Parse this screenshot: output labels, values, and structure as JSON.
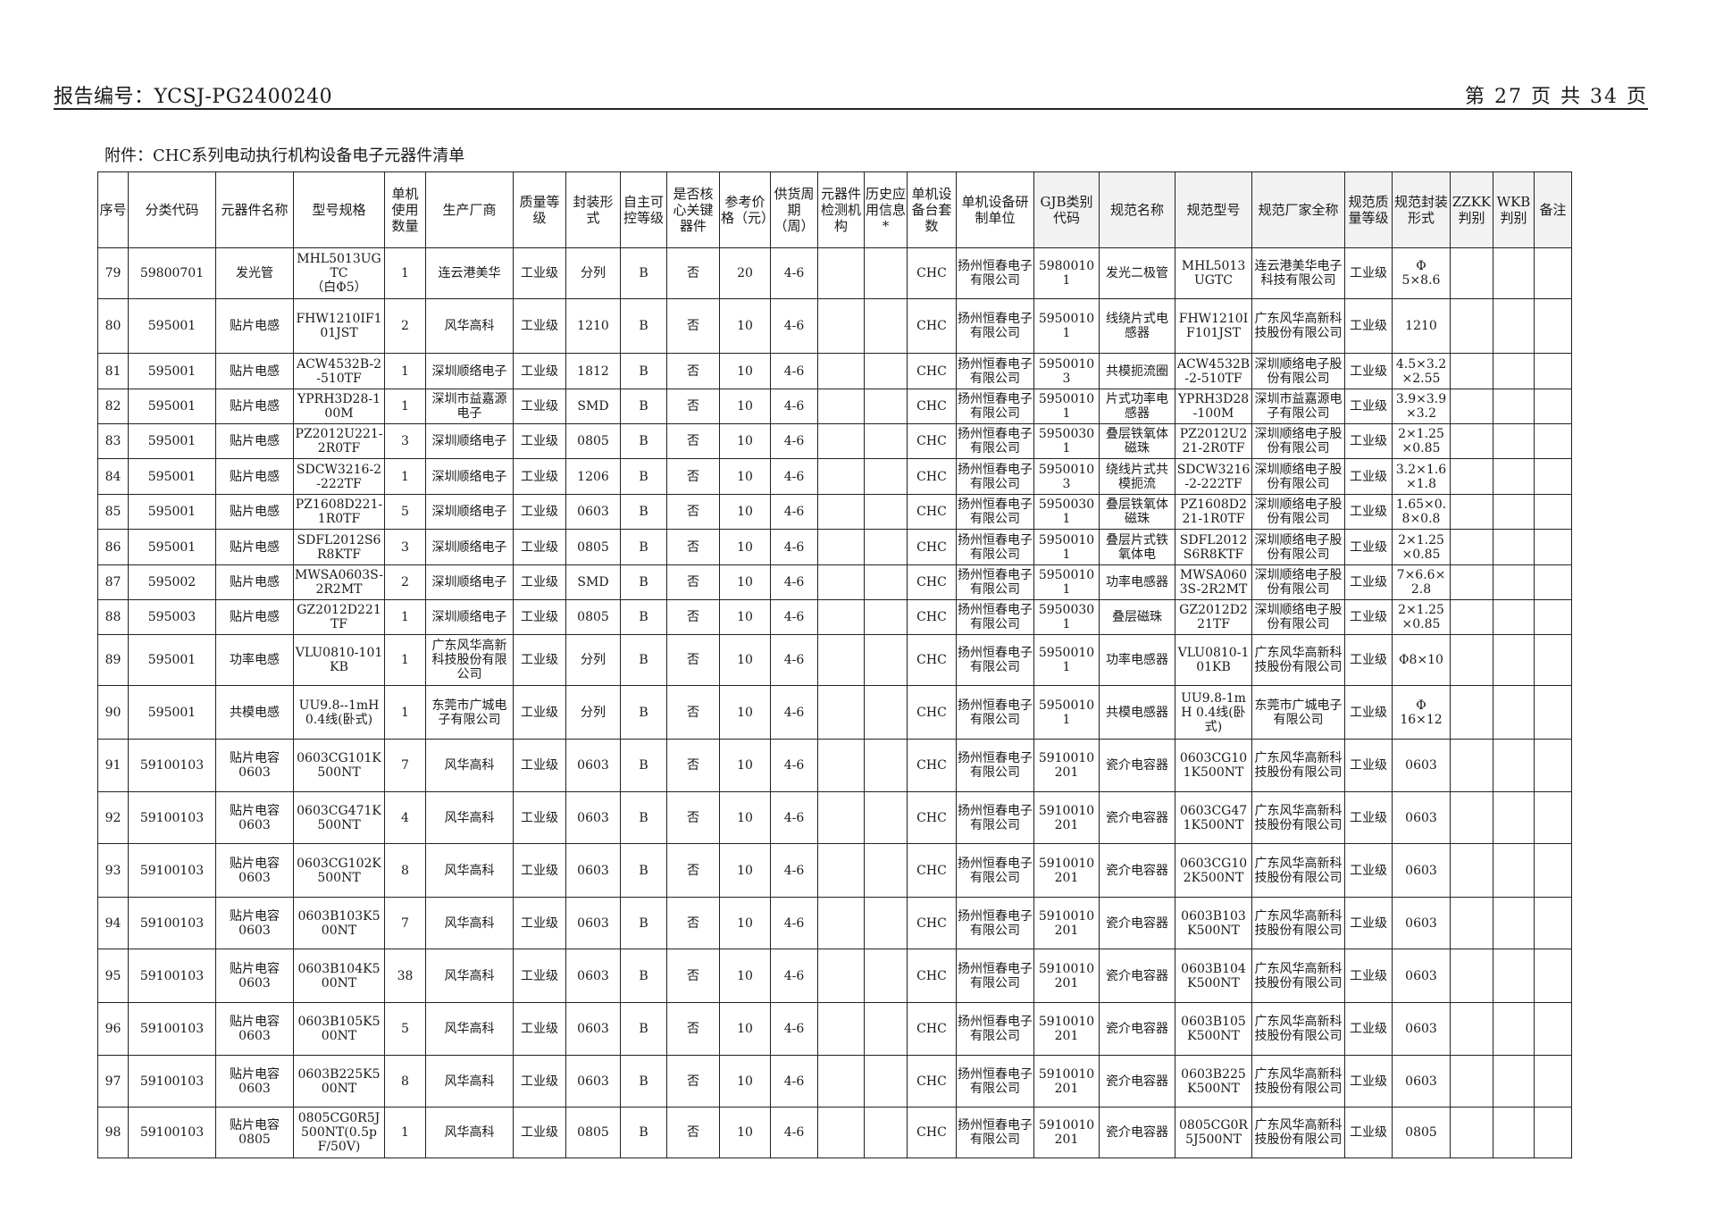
{
  "header": {
    "report_no": "报告编号：YCSJ-PG2400240",
    "page": "第 27 页 共 34 页"
  },
  "title": "附件：CHC系列电动执行机构设备电子元器件清单",
  "columns": [
    "序号",
    "分类代码",
    "元器件名称",
    "型号规格",
    "单机使用数量",
    "生产厂商",
    "质量等级",
    "封装形式",
    "自主可控等级",
    "是否核心关键器件",
    "参考价格（元）",
    "供货周期（周）",
    "元器件检测机构",
    "历史应用信息*",
    "单机设备台套数",
    "单机设备研制单位",
    "GJB类别代码",
    "规范名称",
    "规范型号",
    "规范厂家全称",
    "规范质量等级",
    "规范封装形式",
    "ZZKK判别",
    "WKB判别",
    "备注"
  ],
  "rows": [
    [
      "79",
      "59800701",
      "发光管",
      "MHL5013UGTC\n（白Φ5）",
      "1",
      "连云港美华",
      "工业级",
      "分列",
      "B",
      "否",
      "20",
      "4-6",
      "",
      "",
      "CHC",
      "扬州恒春电子有限公司",
      "59800101",
      "发光二极管",
      "MHL5013UGTC",
      "连云港美华电子科技有限公司",
      "工业级",
      "Φ\n5×8.6",
      "",
      "",
      ""
    ],
    [
      "80",
      "595001",
      "贴片电感",
      "FHW1210IF101JST",
      "2",
      "风华高科",
      "工业级",
      "1210",
      "B",
      "否",
      "10",
      "4-6",
      "",
      "",
      "CHC",
      "扬州恒春电子有限公司",
      "59500101",
      "线绕片式电感器",
      "FHW1210IF101JST",
      "广东风华高新科技股份有限公司",
      "工业级",
      "1210",
      "",
      "",
      ""
    ],
    [
      "81",
      "595001",
      "贴片电感",
      "ACW4532B-2-510TF",
      "1",
      "深圳顺络电子",
      "工业级",
      "1812",
      "B",
      "否",
      "10",
      "4-6",
      "",
      "",
      "CHC",
      "扬州恒春电子有限公司",
      "59500103",
      "共模扼流圈",
      "ACW4532B-2-510TF",
      "深圳顺络电子股份有限公司",
      "工业级",
      "4.5×3.2×2.55",
      "",
      "",
      ""
    ],
    [
      "82",
      "595001",
      "贴片电感",
      "YPRH3D28-100M",
      "1",
      "深圳市益嘉源电子",
      "工业级",
      "SMD",
      "B",
      "否",
      "10",
      "4-6",
      "",
      "",
      "CHC",
      "扬州恒春电子有限公司",
      "59500101",
      "片式功率电感器",
      "YPRH3D28-100M",
      "深圳市益嘉源电子有限公司",
      "工业级",
      "3.9×3.9×3.2",
      "",
      "",
      ""
    ],
    [
      "83",
      "595001",
      "贴片电感",
      "PZ2012U221-2R0TF",
      "3",
      "深圳顺络电子",
      "工业级",
      "0805",
      "B",
      "否",
      "10",
      "4-6",
      "",
      "",
      "CHC",
      "扬州恒春电子有限公司",
      "59500301",
      "叠层铁氧体磁珠",
      "PZ2012U221-2R0TF",
      "深圳顺络电子股份有限公司",
      "工业级",
      "2×1.25×0.85",
      "",
      "",
      ""
    ],
    [
      "84",
      "595001",
      "贴片电感",
      "SDCW3216-2-222TF",
      "1",
      "深圳顺络电子",
      "工业级",
      "1206",
      "B",
      "否",
      "10",
      "4-6",
      "",
      "",
      "CHC",
      "扬州恒春电子有限公司",
      "59500103",
      "绕线片式共模扼流",
      "SDCW3216-2-222TF",
      "深圳顺络电子股份有限公司",
      "工业级",
      "3.2×1.6×1.8",
      "",
      "",
      ""
    ],
    [
      "85",
      "595001",
      "贴片电感",
      "PZ1608D221-1R0TF",
      "5",
      "深圳顺络电子",
      "工业级",
      "0603",
      "B",
      "否",
      "10",
      "4-6",
      "",
      "",
      "CHC",
      "扬州恒春电子有限公司",
      "59500301",
      "叠层铁氧体磁珠",
      "PZ1608D221-1R0TF",
      "深圳顺络电子股份有限公司",
      "工业级",
      "1.65×0.8×0.8",
      "",
      "",
      ""
    ],
    [
      "86",
      "595001",
      "贴片电感",
      "SDFL2012S6R8KTF",
      "3",
      "深圳顺络电子",
      "工业级",
      "0805",
      "B",
      "否",
      "10",
      "4-6",
      "",
      "",
      "CHC",
      "扬州恒春电子有限公司",
      "59500101",
      "叠层片式铁氧体电",
      "SDFL2012S6R8KTF",
      "深圳顺络电子股份有限公司",
      "工业级",
      "2×1.25×0.85",
      "",
      "",
      ""
    ],
    [
      "87",
      "595002",
      "贴片电感",
      "MWSA0603S-2R2MT",
      "2",
      "深圳顺络电子",
      "工业级",
      "SMD",
      "B",
      "否",
      "10",
      "4-6",
      "",
      "",
      "CHC",
      "扬州恒春电子有限公司",
      "59500101",
      "功率电感器",
      "MWSA0603S-2R2MT",
      "深圳顺络电子股份有限公司",
      "工业级",
      "7×6.6×2.8",
      "",
      "",
      ""
    ],
    [
      "88",
      "595003",
      "贴片电感",
      "GZ2012D221TF",
      "1",
      "深圳顺络电子",
      "工业级",
      "0805",
      "B",
      "否",
      "10",
      "4-6",
      "",
      "",
      "CHC",
      "扬州恒春电子有限公司",
      "59500301",
      "叠层磁珠",
      "GZ2012D221TF",
      "深圳顺络电子股份有限公司",
      "工业级",
      "2×1.25×0.85",
      "",
      "",
      ""
    ],
    [
      "89",
      "595001",
      "功率电感",
      "VLU0810-101KB",
      "1",
      "广东风华高新科技股份有限公司",
      "工业级",
      "分列",
      "B",
      "否",
      "10",
      "4-6",
      "",
      "",
      "CHC",
      "扬州恒春电子有限公司",
      "59500101",
      "功率电感器",
      "VLU0810-101KB",
      "广东风华高新科技股份有限公司",
      "工业级",
      "Φ8×10",
      "",
      "",
      ""
    ],
    [
      "90",
      "595001",
      "共模电感",
      "UU9.8--1mH\n0.4线(卧式)",
      "1",
      "东莞市广城电子有限公司",
      "工业级",
      "分列",
      "B",
      "否",
      "10",
      "4-6",
      "",
      "",
      "CHC",
      "扬州恒春电子有限公司",
      "59500101",
      "共模电感器",
      "UU9.8-1mH 0.4线(卧式)",
      "东莞市广城电子有限公司",
      "工业级",
      "Φ\n16×12",
      "",
      "",
      ""
    ],
    [
      "91",
      "59100103",
      "贴片电容\n0603",
      "0603CG101K500NT",
      "7",
      "风华高科",
      "工业级",
      "0603",
      "B",
      "否",
      "10",
      "4-6",
      "",
      "",
      "CHC",
      "扬州恒春电子有限公司",
      "5910010201",
      "瓷介电容器",
      "0603CG101K500NT",
      "广东风华高新科技股份有限公司",
      "工业级",
      "0603",
      "",
      "",
      ""
    ],
    [
      "92",
      "59100103",
      "贴片电容\n0603",
      "0603CG471K500NT",
      "4",
      "风华高科",
      "工业级",
      "0603",
      "B",
      "否",
      "10",
      "4-6",
      "",
      "",
      "CHC",
      "扬州恒春电子有限公司",
      "5910010201",
      "瓷介电容器",
      "0603CG471K500NT",
      "广东风华高新科技股份有限公司",
      "工业级",
      "0603",
      "",
      "",
      ""
    ],
    [
      "93",
      "59100103",
      "贴片电容\n0603",
      "0603CG102K500NT",
      "8",
      "风华高科",
      "工业级",
      "0603",
      "B",
      "否",
      "10",
      "4-6",
      "",
      "",
      "CHC",
      "扬州恒春电子有限公司",
      "5910010201",
      "瓷介电容器",
      "0603CG102K500NT",
      "广东风华高新科技股份有限公司",
      "工业级",
      "0603",
      "",
      "",
      ""
    ],
    [
      "94",
      "59100103",
      "贴片电容\n0603",
      "0603B103K500NT",
      "7",
      "风华高科",
      "工业级",
      "0603",
      "B",
      "否",
      "10",
      "4-6",
      "",
      "",
      "CHC",
      "扬州恒春电子有限公司",
      "5910010201",
      "瓷介电容器",
      "0603B103K500NT",
      "广东风华高新科技股份有限公司",
      "工业级",
      "0603",
      "",
      "",
      ""
    ],
    [
      "95",
      "59100103",
      "贴片电容\n0603",
      "0603B104K500NT",
      "38",
      "风华高科",
      "工业级",
      "0603",
      "B",
      "否",
      "10",
      "4-6",
      "",
      "",
      "CHC",
      "扬州恒春电子有限公司",
      "5910010201",
      "瓷介电容器",
      "0603B104K500NT",
      "广东风华高新科技股份有限公司",
      "工业级",
      "0603",
      "",
      "",
      ""
    ],
    [
      "96",
      "59100103",
      "贴片电容\n0603",
      "0603B105K500NT",
      "5",
      "风华高科",
      "工业级",
      "0603",
      "B",
      "否",
      "10",
      "4-6",
      "",
      "",
      "CHC",
      "扬州恒春电子有限公司",
      "5910010201",
      "瓷介电容器",
      "0603B105K500NT",
      "广东风华高新科技股份有限公司",
      "工业级",
      "0603",
      "",
      "",
      ""
    ],
    [
      "97",
      "59100103",
      "贴片电容\n0603",
      "0603B225K500NT",
      "8",
      "风华高科",
      "工业级",
      "0603",
      "B",
      "否",
      "10",
      "4-6",
      "",
      "",
      "CHC",
      "扬州恒春电子有限公司",
      "5910010201",
      "瓷介电容器",
      "0603B225K500NT",
      "广东风华高新科技股份有限公司",
      "工业级",
      "0603",
      "",
      "",
      ""
    ],
    [
      "98",
      "59100103",
      "贴片电容\n0805",
      "0805CG0R5J500NT(0.5pF/50V)",
      "1",
      "风华高科",
      "工业级",
      "0805",
      "B",
      "否",
      "10",
      "4-6",
      "",
      "",
      "CHC",
      "扬州恒春电子有限公司",
      "5910010201",
      "瓷介电容器",
      "0805CG0R5J500NT",
      "广东风华高新科技股份有限公司",
      "工业级",
      "0805",
      "",
      "",
      ""
    ]
  ]
}
